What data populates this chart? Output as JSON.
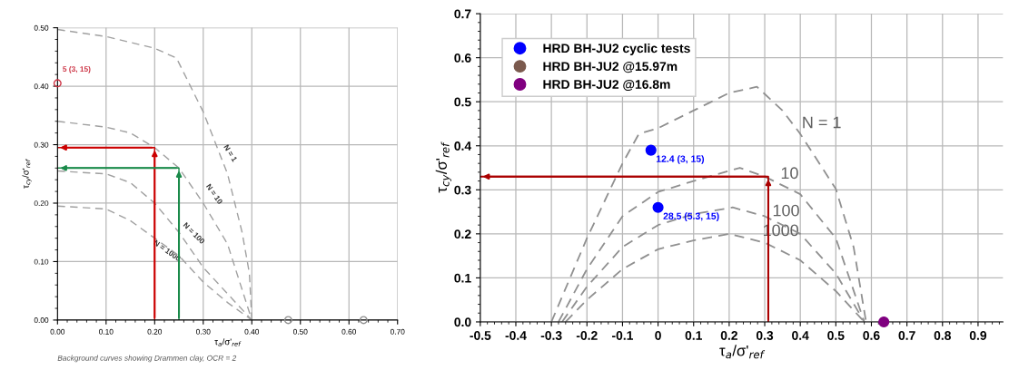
{
  "chart_data": [
    {
      "type": "line",
      "xlabel": "τ$_{a}$/σ'$_{ref}$",
      "ylabel": "τ$_{cy}$/σ'$_{ref}$",
      "xlim": [
        0,
        0.7
      ],
      "ylim": [
        0,
        0.5
      ],
      "xticks": [
        {
          "value": 0,
          "label": "0.00"
        },
        {
          "value": 0.1,
          "label": "0.10"
        },
        {
          "value": 0.2,
          "label": "0.20"
        },
        {
          "value": 0.3,
          "label": "0.30"
        },
        {
          "value": 0.4,
          "label": "0.40"
        },
        {
          "value": 0.5,
          "label": "0.50"
        },
        {
          "value": 0.6,
          "label": "0.60"
        },
        {
          "value": 0.7,
          "label": "0.70"
        }
      ],
      "yticks": [
        {
          "value": 0,
          "label": "0.00"
        },
        {
          "value": 0.1,
          "label": "0.10"
        },
        {
          "value": 0.2,
          "label": "0.20"
        },
        {
          "value": 0.3,
          "label": "0.30"
        },
        {
          "value": 0.4,
          "label": "0.40"
        },
        {
          "value": 0.5,
          "label": "0.50"
        }
      ],
      "grid": true,
      "legend": false,
      "annotations": [
        "Background curves showing Drammen clay, OCR = 2"
      ],
      "series": [
        {
          "name": "N = 1",
          "color": "#a0a0a0",
          "line_style": "dashed",
          "x": [
            0,
            0.1,
            0.2,
            0.245,
            0.3,
            0.35,
            0.38,
            0.395,
            0.4
          ],
          "values": [
            0.497,
            0.485,
            0.465,
            0.448,
            0.356,
            0.25,
            0.15,
            0.08,
            0.0
          ]
        },
        {
          "name": "N = 10",
          "color": "#a0a0a0",
          "line_style": "dashed",
          "x": [
            0,
            0.1,
            0.15,
            0.2,
            0.25,
            0.3,
            0.35,
            0.4
          ],
          "values": [
            0.34,
            0.33,
            0.32,
            0.295,
            0.26,
            0.2,
            0.13,
            0.0
          ]
        },
        {
          "name": "N = 100",
          "color": "#a0a0a0",
          "line_style": "dashed",
          "x": [
            0,
            0.1,
            0.15,
            0.2,
            0.25,
            0.3,
            0.35,
            0.4
          ],
          "values": [
            0.255,
            0.25,
            0.235,
            0.2,
            0.15,
            0.09,
            0.045,
            0.0
          ]
        },
        {
          "name": "N = 1000",
          "color": "#a0a0a0",
          "line_style": "dashed",
          "x": [
            0,
            0.1,
            0.15,
            0.2,
            0.25,
            0.3,
            0.35,
            0.4
          ],
          "values": [
            0.195,
            0.19,
            0.17,
            0.14,
            0.11,
            0.065,
            0.03,
            0.0
          ]
        },
        {
          "color": "#cc0000",
          "line_style": "solid",
          "x": [
            0.2,
            0.2,
            0
          ],
          "values": [
            0,
            0.295,
            0.295
          ]
        },
        {
          "color": "#1a8a4a",
          "line_style": "solid",
          "x": [
            0.25,
            0.25,
            0
          ],
          "values": [
            0,
            0.26,
            0.26
          ]
        },
        {
          "type": "scatter",
          "color": "#cc3344",
          "marker": "circle",
          "x": [
            0
          ],
          "values": [
            0.405
          ],
          "value_labels": [
            "5 (3, 15)"
          ]
        },
        {
          "type": "scatter",
          "color": "#909090",
          "marker": "circle",
          "x": [
            0.475,
            0.63
          ],
          "values": [
            0,
            0
          ]
        }
      ]
    },
    {
      "type": "line",
      "xlabel": "τ$_{a}$/σ'$_{ref}$",
      "ylabel": "τ$_{cy}$/σ'$_{ref}$",
      "xlim": [
        -0.5,
        0.97
      ],
      "ylim": [
        0,
        0.7
      ],
      "xticks": [
        -0.5,
        -0.4,
        -0.3,
        -0.2,
        -0.1,
        0,
        0.1,
        0.2,
        0.3,
        0.4,
        0.5,
        0.6,
        0.7,
        0.8,
        0.9
      ],
      "yticks": [
        {
          "value": 0,
          "label": "0.0"
        },
        0.1,
        0.2,
        0.3,
        0.4,
        0.5,
        0.6,
        0.7
      ],
      "grid": true,
      "legend": "top left",
      "series": [
        {
          "name": "N = 1",
          "color": "#909090",
          "line_style": "dashed",
          "x": [
            -0.3,
            -0.2,
            -0.1,
            -0.054,
            0,
            0.1,
            0.2,
            0.278,
            0.35,
            0.4,
            0.5,
            0.55,
            0.585
          ],
          "values": [
            0,
            0.19,
            0.36,
            0.427,
            0.44,
            0.48,
            0.52,
            0.534,
            0.48,
            0.427,
            0.302,
            0.17,
            0
          ]
        },
        {
          "name": "10",
          "color": "#909090",
          "line_style": "dashed",
          "x": [
            -0.28,
            -0.2,
            -0.1,
            0,
            0.1,
            0.23,
            0.3,
            0.4,
            0.5,
            0.58
          ],
          "values": [
            0,
            0.12,
            0.24,
            0.295,
            0.32,
            0.35,
            0.33,
            0.29,
            0.19,
            0
          ]
        },
        {
          "name": "100",
          "color": "#909090",
          "line_style": "dashed",
          "x": [
            -0.27,
            -0.2,
            -0.1,
            0,
            0.1,
            0.21,
            0.3,
            0.4,
            0.5,
            0.58
          ],
          "values": [
            0,
            0.08,
            0.17,
            0.22,
            0.245,
            0.26,
            0.24,
            0.2,
            0.11,
            0
          ]
        },
        {
          "name": "1000",
          "color": "#909090",
          "line_style": "dashed",
          "x": [
            -0.26,
            -0.2,
            -0.1,
            0,
            0.1,
            0.2,
            0.3,
            0.4,
            0.5,
            0.58
          ],
          "values": [
            0,
            0.05,
            0.12,
            0.165,
            0.185,
            0.2,
            0.18,
            0.14,
            0.07,
            0
          ]
        },
        {
          "color": "#aa0000",
          "line_style": "solid",
          "x": [
            0.31,
            0.31,
            -0.5
          ],
          "values": [
            0,
            0.33,
            0.33
          ]
        },
        {
          "type": "scatter",
          "name": "HRD BH-JU2 cyclic tests",
          "color": "#0000ff",
          "marker": "circle",
          "x": [
            -0.02,
            0
          ],
          "values": [
            0.39,
            0.26
          ],
          "value_labels": [
            "12.4 (3, 15)",
            "28.5 (5.3, 15)"
          ]
        },
        {
          "type": "scatter",
          "name": "HRD BH-JU2 @15.97m",
          "color": "#7b5a4e",
          "marker": "circle"
        },
        {
          "type": "scatter",
          "name": "HRD BH-JU2 @16.8m",
          "color": "#800080",
          "marker": "circle",
          "x": [
            0.635
          ],
          "values": [
            0
          ]
        }
      ]
    }
  ]
}
